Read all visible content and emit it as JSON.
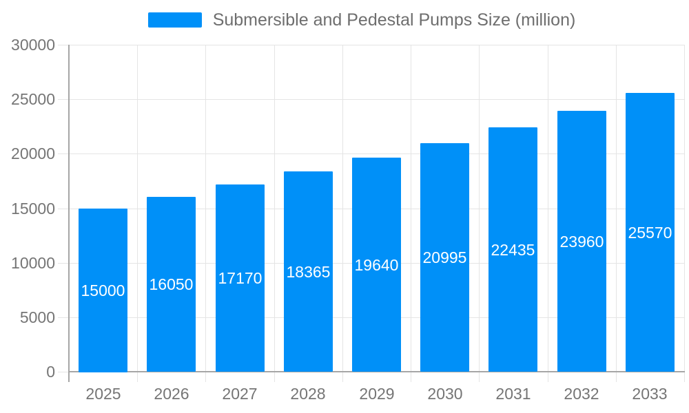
{
  "chart_data": {
    "type": "bar",
    "title": "Submersible and Pedestal Pumps Size (million)",
    "categories": [
      "2025",
      "2026",
      "2027",
      "2028",
      "2029",
      "2030",
      "2031",
      "2032",
      "2033"
    ],
    "series": [
      {
        "name": "Submersible and Pedestal Pumps Size (million)",
        "values": [
          15000,
          16050,
          17170,
          18365,
          19640,
          20995,
          22435,
          23960,
          25570
        ]
      }
    ],
    "value_labels_shown": true,
    "xlabel": "",
    "ylabel": "",
    "ylim": [
      0,
      30000
    ],
    "yticks": [
      0,
      5000,
      10000,
      15000,
      20000,
      25000,
      30000
    ],
    "grid": true,
    "legend_position": "top"
  },
  "colors": {
    "bar": "#0090F8",
    "grid": "#e4e4e4",
    "axis": "#a6a6a6",
    "axis_label": "#757575",
    "legend_label": "#6e6e6e",
    "value_label": "#ffffff",
    "background": "#ffffff"
  }
}
